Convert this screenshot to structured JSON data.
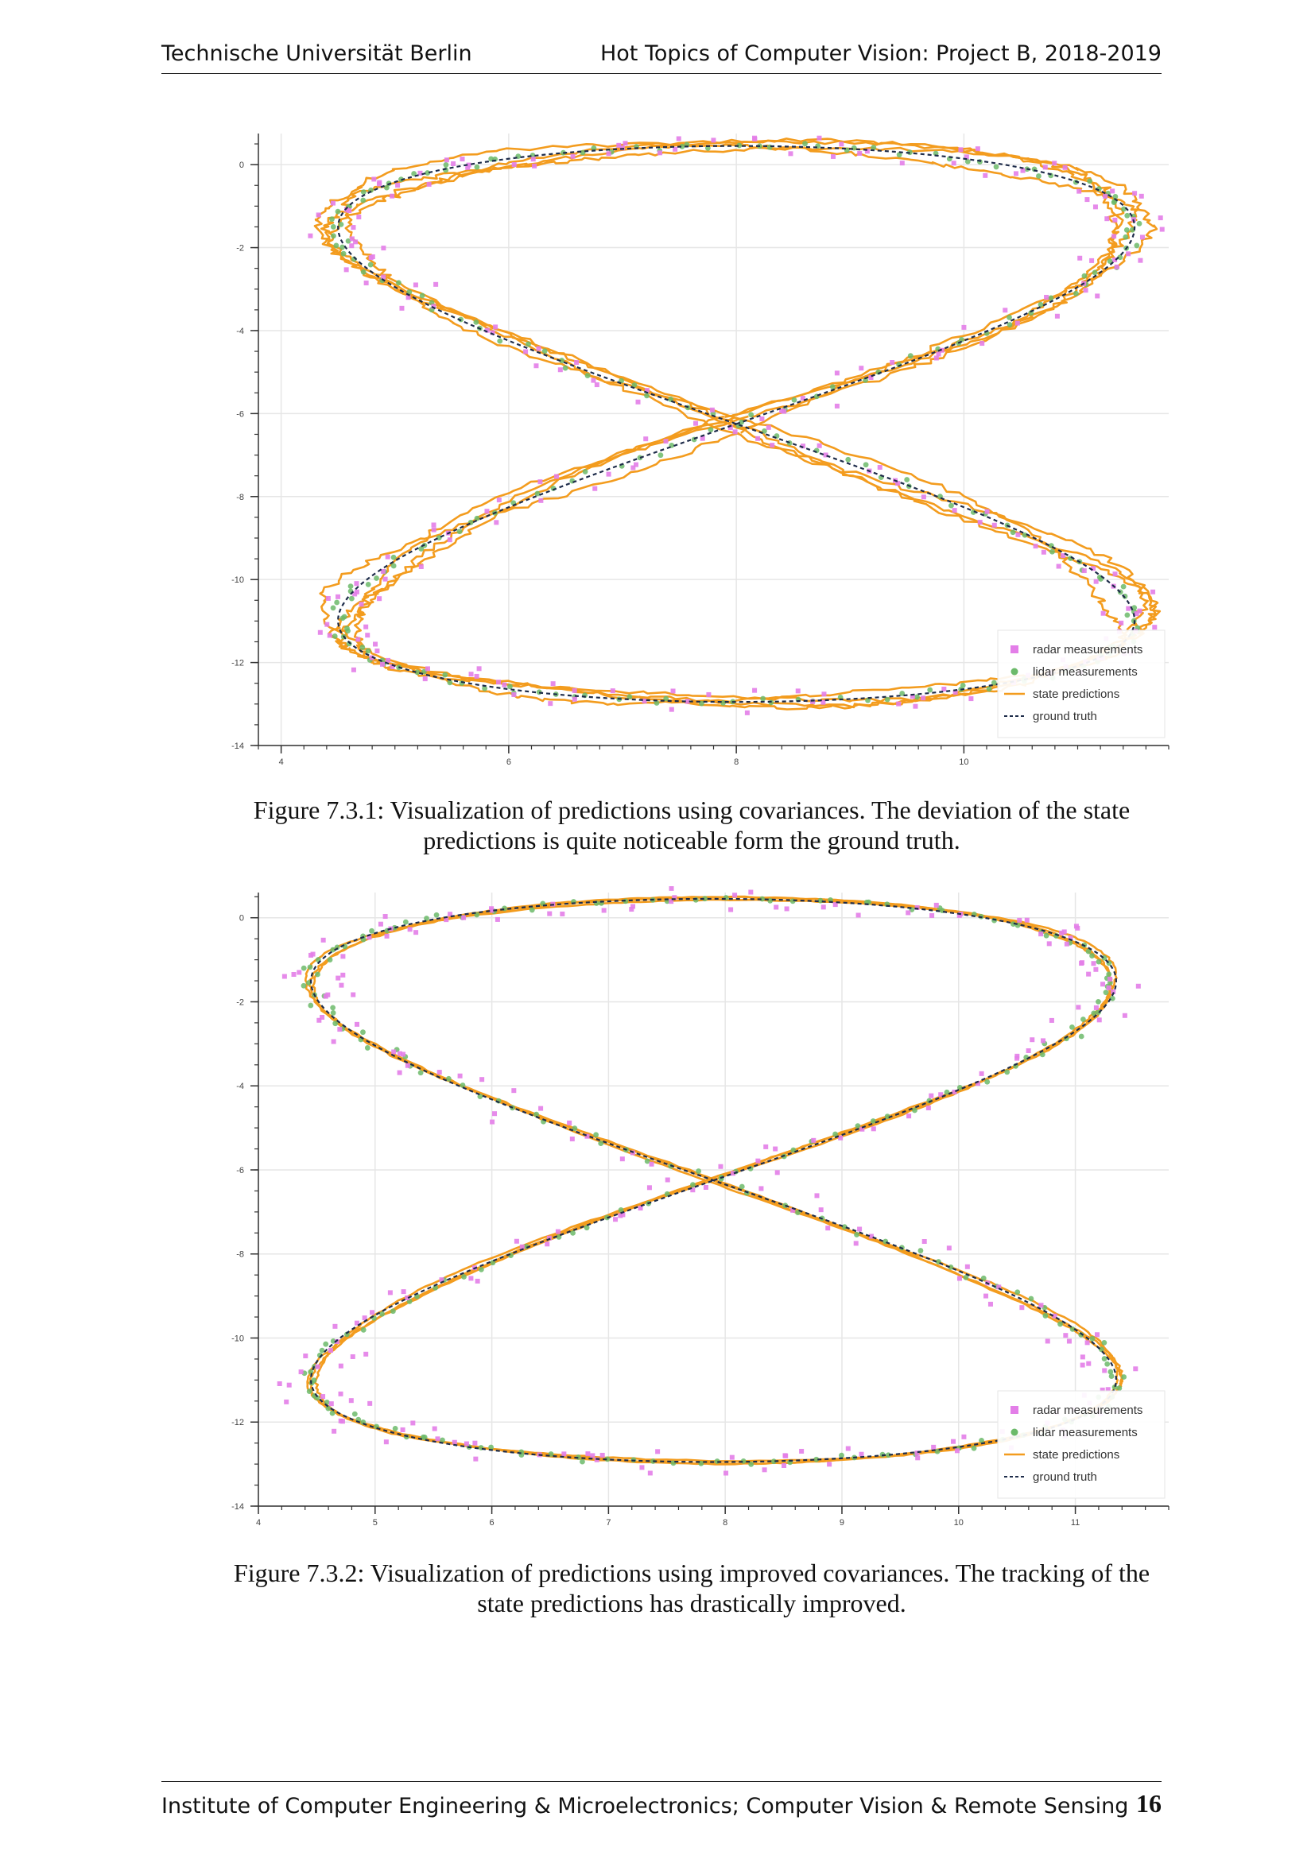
{
  "header": {
    "left": "Technische Universität Berlin",
    "right": "Hot Topics of Computer Vision: Project B,  2018-2019"
  },
  "footer": {
    "left": "Institute of Computer Engineering & Microelectronics; Computer Vision & Remote Sensing",
    "page_number": "16"
  },
  "figures": [
    {
      "caption_line1": "Figure 7.3.1: Visualization of predictions using covariances. The deviation of the state",
      "caption_line2": "predictions is quite noticeable form the ground truth."
    },
    {
      "caption_line1": "Figure 7.3.2: Visualization of predictions using improved covariances. The tracking of the",
      "caption_line2": "state predictions has drastically improved."
    }
  ],
  "colors": {
    "radar": "#e37ee8",
    "lidar": "#6cba6a",
    "state": "#f39c1e",
    "truth": "#1e2c4a",
    "grid": "#e6e6e6"
  },
  "chart_data": [
    {
      "type": "scatter",
      "title": "",
      "xlabel": "",
      "ylabel": "",
      "x_ticks": [
        "4",
        "6",
        "8",
        "10"
      ],
      "y_ticks": [
        "0",
        "-2",
        "-4",
        "-6",
        "-8",
        "-10",
        "-12",
        "-14"
      ],
      "xlim": [
        3.8,
        11.8
      ],
      "ylim": [
        -14,
        0.75
      ],
      "grid": true,
      "legend_position": "bottom-right",
      "legend": [
        "radar measurements",
        "lidar measurements",
        "state predictions",
        "ground truth"
      ],
      "ground_truth": {
        "shape": "figure-eight",
        "center": [
          8.0,
          -6.25
        ],
        "x_amplitude": 3.5,
        "y_amplitude": 6.7,
        "x_range": [
          4.4,
          11.4
        ],
        "y_range": [
          -13.2,
          0.3
        ]
      },
      "prediction_deviation": 0.15,
      "radar_noise": 0.28,
      "lidar_noise": 0.08
    },
    {
      "type": "scatter",
      "title": "",
      "xlabel": "",
      "ylabel": "",
      "x_ticks": [
        "4",
        "5",
        "6",
        "7",
        "8",
        "9",
        "10",
        "11"
      ],
      "y_ticks": [
        "0",
        "-2",
        "-4",
        "-6",
        "-8",
        "-10",
        "-12",
        "-14"
      ],
      "xlim": [
        4.0,
        11.8
      ],
      "ylim": [
        -14,
        0.6
      ],
      "grid": true,
      "legend_position": "bottom-right",
      "legend": [
        "radar measurements",
        "lidar measurements",
        "state predictions",
        "ground truth"
      ],
      "ground_truth": {
        "shape": "figure-eight",
        "center": [
          7.9,
          -6.25
        ],
        "x_amplitude": 3.45,
        "y_amplitude": 6.7,
        "x_range": [
          4.45,
          11.35
        ],
        "y_range": [
          -13.2,
          0.3
        ]
      },
      "prediction_deviation": 0.04,
      "radar_noise": 0.28,
      "lidar_noise": 0.08
    }
  ]
}
